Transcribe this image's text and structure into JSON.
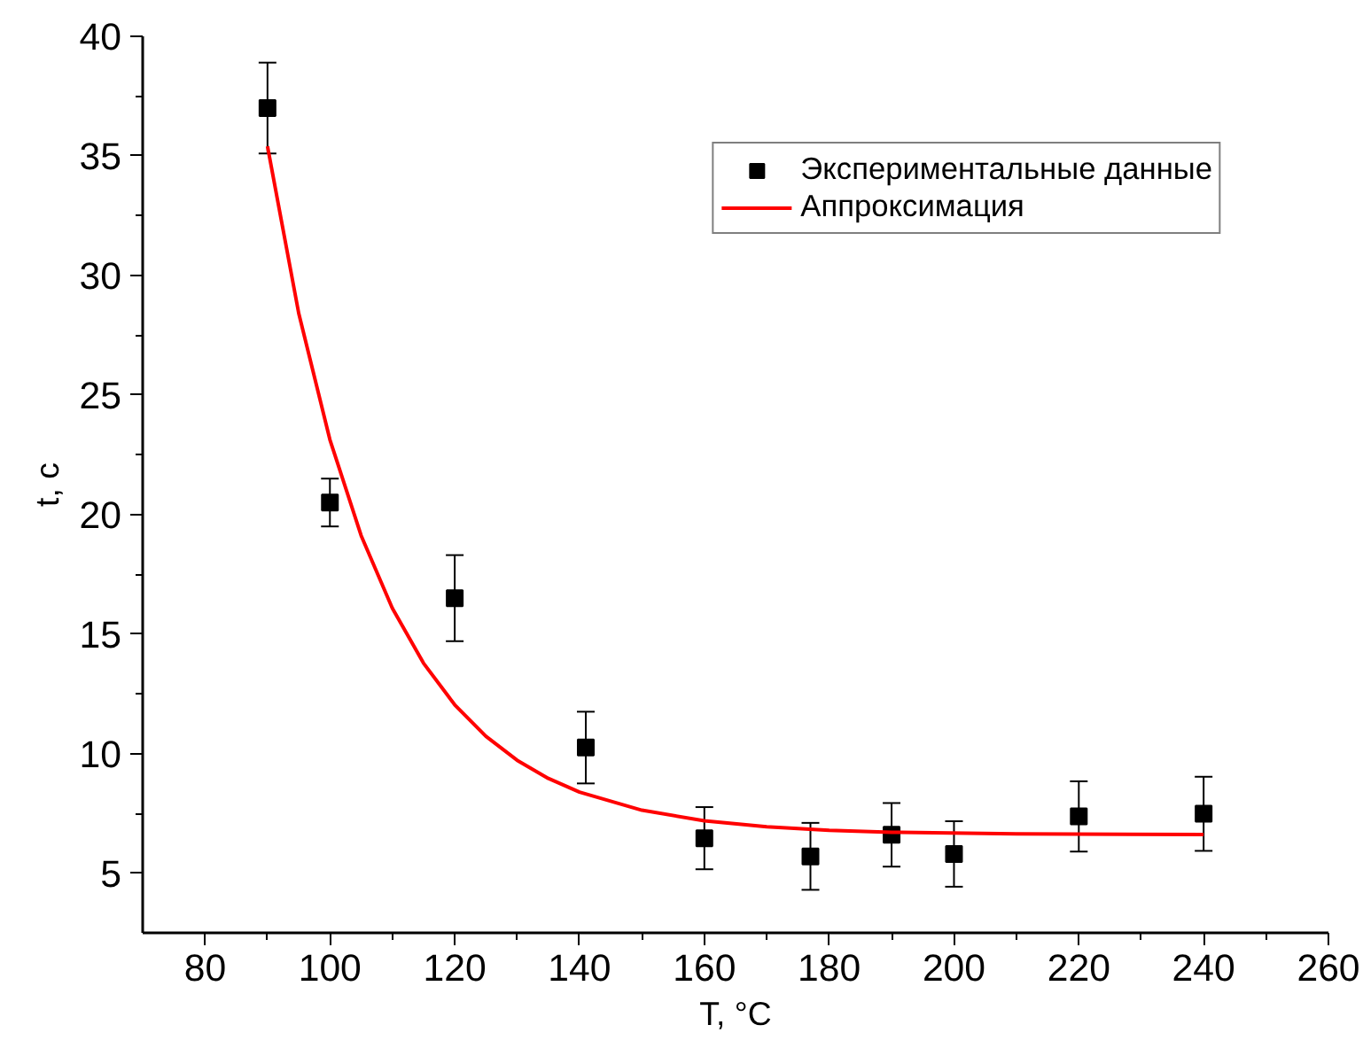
{
  "chart_data": {
    "type": "scatter",
    "xlabel": "T, °C",
    "ylabel": "t, c",
    "xlim": [
      70,
      260
    ],
    "xticks": [
      80,
      100,
      120,
      140,
      160,
      180,
      200,
      220,
      240,
      260
    ],
    "ylim": [
      2.5,
      40
    ],
    "yticks": [
      5,
      10,
      15,
      20,
      25,
      30,
      35,
      40
    ],
    "grid": false,
    "legend": "top right",
    "series": [
      {
        "name": "Экспериментальные данные",
        "marker": "square",
        "color": "#000000",
        "x": [
          90,
          100,
          120,
          141,
          160,
          177,
          190,
          200,
          220,
          240
        ],
        "values": [
          37.0,
          20.5,
          16.5,
          10.25,
          6.46,
          5.7,
          6.6,
          5.8,
          7.37,
          7.48
        ],
        "errors": [
          1.9,
          1.0,
          1.8,
          1.5,
          1.3,
          1.4,
          1.33,
          1.37,
          1.47,
          1.55
        ]
      },
      {
        "name": "Аппроксимация",
        "type": "line",
        "line_style": "solid",
        "color": "#ff0000",
        "x": [
          90,
          95,
          100,
          105,
          110,
          115,
          120,
          125,
          130,
          135,
          140,
          150,
          160,
          170,
          180,
          190,
          210,
          240
        ],
        "values": [
          35.4,
          28.42,
          23.13,
          19.12,
          16.08,
          13.78,
          12.04,
          10.72,
          9.72,
          8.96,
          8.39,
          7.63,
          7.19,
          6.94,
          6.79,
          6.71,
          6.64,
          6.61
        ]
      }
    ]
  }
}
